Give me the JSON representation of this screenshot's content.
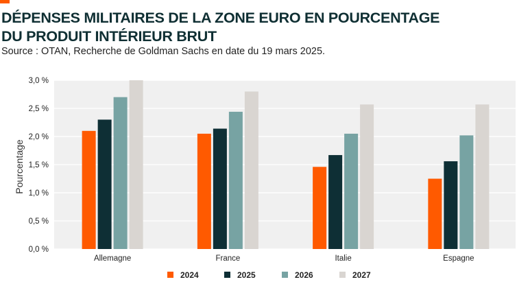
{
  "header": {
    "title_line1": "DÉPENSES MILITAIRES DE LA ZONE EURO EN POURCENTAGE",
    "title_line2": "DU PRODUIT INTÉRIEUR BRUT",
    "source": "Source : OTAN, Recherche de Goldman Sachs en date du 19 mars 2025."
  },
  "colors": {
    "accent": "#ff5a00",
    "plot_background": "#f0f0f0",
    "grid": "#ffffff"
  },
  "chart_data": {
    "type": "bar",
    "title": "DÉPENSES MILITAIRES DE LA ZONE EURO EN POURCENTAGE DU PRODUIT INTÉRIEUR BRUT",
    "xlabel": "",
    "ylabel": "Pourcentage",
    "ylim": [
      0,
      3
    ],
    "yticks": [
      {
        "value": 0,
        "label": "0,0 %"
      },
      {
        "value": 0.5,
        "label": "0,5 %"
      },
      {
        "value": 1.0,
        "label": "1,0 %"
      },
      {
        "value": 1.5,
        "label": "1,5 %"
      },
      {
        "value": 2.0,
        "label": "2,0 %"
      },
      {
        "value": 2.5,
        "label": "2,5 %"
      },
      {
        "value": 3.0,
        "label": "3,0 %"
      }
    ],
    "grid": true,
    "legend_position": "bottom",
    "categories": [
      "Allemagne",
      "France",
      "Italie",
      "Espagne"
    ],
    "series": [
      {
        "name": "2024",
        "color": "#ff5a00",
        "values": [
          2.1,
          2.05,
          1.46,
          1.25
        ]
      },
      {
        "name": "2025",
        "color": "#0e2f35",
        "values": [
          2.3,
          2.14,
          1.67,
          1.56
        ]
      },
      {
        "name": "2026",
        "color": "#77a3a3",
        "values": [
          2.7,
          2.44,
          2.05,
          2.02
        ]
      },
      {
        "name": "2027",
        "color": "#d9d5d1",
        "values": [
          3.0,
          2.8,
          2.57,
          2.57
        ]
      }
    ]
  }
}
